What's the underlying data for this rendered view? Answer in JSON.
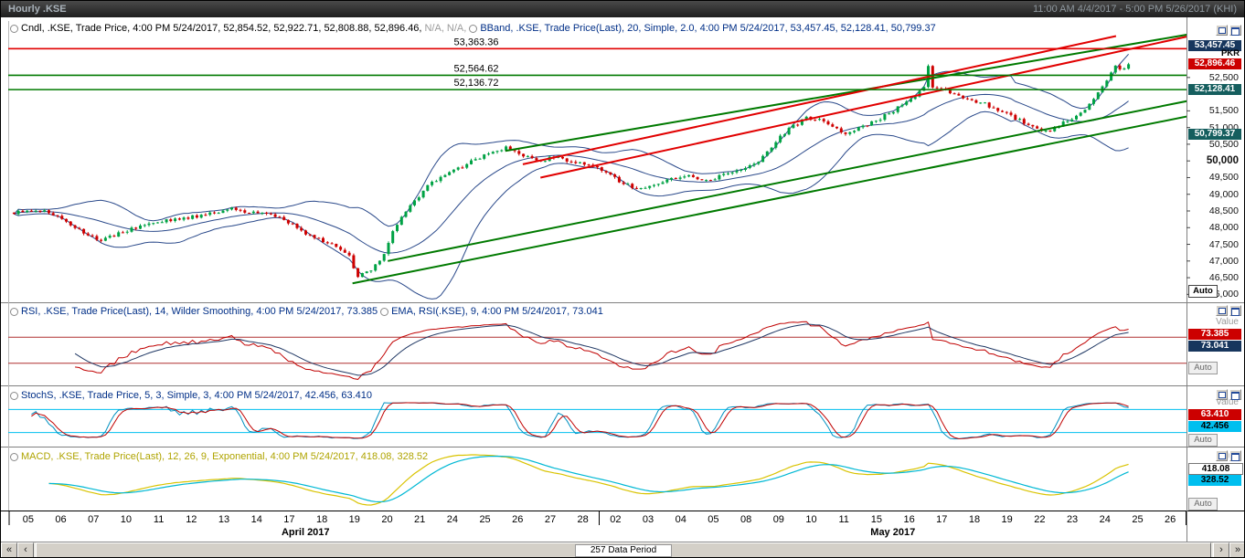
{
  "window": {
    "title": "Hourly .KSE",
    "time_range": "11:00 AM 4/4/2017 - 5:00 PM 5/26/2017 (KHI)"
  },
  "axis_labels": {
    "currency": "PKR",
    "auto": "Auto",
    "value": "Value"
  },
  "scrollbar": {
    "label": "257 Data Period",
    "buttons": [
      "«",
      "‹",
      "›",
      "»"
    ]
  },
  "panels": {
    "main": {
      "legend_cndl": "Cndl, .KSE, Trade Price, 4:00 PM 5/24/2017, 52,854.52, 52,922.71, 52,808.88, 52,896.46, ",
      "legend_cndl_na": "N/A, N/A,",
      "legend_bband": "BBand, .KSE, Trade Price(Last), 20, Simple, 2.0, 4:00 PM 5/24/2017, 53,457.45, 52,128.41, 50,799.37",
      "price_boxes": [
        {
          "label": "53,457.45",
          "value": 53457.45,
          "bg": "#17365d",
          "fg": "#ffffff"
        },
        {
          "label": "52,896.46",
          "value": 52896.46,
          "bg": "#cc0000",
          "fg": "#ffffff",
          "currency_above": true
        },
        {
          "label": "52,128.41",
          "value": 52128.41,
          "bg": "#155e5e",
          "fg": "#ffffff"
        },
        {
          "label": "50,799.37",
          "value": 50799.37,
          "bg": "#155e5e",
          "fg": "#ffffff"
        }
      ],
      "y_ticks": [
        {
          "label": "52,500",
          "value": 52500
        },
        {
          "label": "51,500",
          "value": 51500
        },
        {
          "label": "51,000",
          "value": 51000
        },
        {
          "label": "50,500",
          "value": 50500
        },
        {
          "label": "50,000",
          "value": 50000,
          "bold": true
        },
        {
          "label": "49,500",
          "value": 49500
        },
        {
          "label": "49,000",
          "value": 49000
        },
        {
          "label": "48,500",
          "value": 48500
        },
        {
          "label": "48,000",
          "value": 48000
        },
        {
          "label": "47,500",
          "value": 47500
        },
        {
          "label": "47,000",
          "value": 47000
        },
        {
          "label": "46,500",
          "value": 46500
        },
        {
          "label": "46,000",
          "value": 46000
        }
      ]
    },
    "rsi": {
      "legend_rsi": "RSI, .KSE, Trade Price(Last), 14, Wilder Smoothing, 4:00 PM 5/24/2017, 73.385",
      "legend_ema": "EMA, RSI(.KSE), 9, 4:00 PM 5/24/2017, 73.041",
      "boxes": [
        {
          "label": "73.385",
          "value": 73.385,
          "bg": "#cc0000",
          "fg": "#ffffff"
        },
        {
          "label": "73.041",
          "value": 73.041,
          "bg": "#17365d",
          "fg": "#ffffff"
        }
      ],
      "levels": [
        70,
        30
      ]
    },
    "stoch": {
      "legend": "StochS, .KSE, Trade Price, 5, 3, Simple, 3, 4:00 PM 5/24/2017, 42.456, 63.410",
      "boxes": [
        {
          "label": "63.410",
          "value": 63.41,
          "bg": "#cc0000",
          "fg": "#ffffff"
        },
        {
          "label": "42.456",
          "value": 42.456,
          "bg": "#00bfef",
          "fg": "#000000"
        }
      ],
      "levels": [
        80,
        20
      ]
    },
    "macd": {
      "legend": "MACD, .KSE, Trade Price(Last), 12, 26, 9, Exponential, 4:00 PM 5/24/2017, 418.08, 328.52",
      "boxes": [
        {
          "label": "418.08",
          "bg": "#ffffff",
          "fg": "#000000",
          "outline": true
        },
        {
          "label": "328.52",
          "bg": "#00bfef",
          "fg": "#000000"
        }
      ]
    }
  },
  "xaxis": {
    "months": [
      {
        "label": "April 2017",
        "days": [
          "05",
          "06",
          "07",
          "10",
          "11",
          "12",
          "13",
          "14",
          "17",
          "18",
          "19",
          "20",
          "21",
          "24",
          "25",
          "26",
          "27",
          "28"
        ]
      },
      {
        "label": "May 2017",
        "days": [
          "02",
          "03",
          "04",
          "05",
          "08",
          "09",
          "10",
          "11",
          "15",
          "16",
          "17",
          "18",
          "19",
          "22",
          "23",
          "24",
          "25",
          "26"
        ]
      }
    ]
  },
  "chart_data": {
    "type": "candlestick",
    "symbol": ".KSE",
    "interval": "Hourly",
    "bar_count": 257,
    "price_range": [
      45900,
      53700
    ],
    "last_ohlc": {
      "open": 52854.52,
      "high": 52922.71,
      "low": 52808.88,
      "close": 52896.46
    },
    "bband": {
      "period": 20,
      "type": "Simple",
      "mult": 2.0,
      "upper": 53457.45,
      "middle": 52128.41,
      "lower": 50799.37
    },
    "levels": [
      {
        "label": "53,363.36",
        "price": 53363.36,
        "color": "#e10000"
      },
      {
        "label": "52,564.62",
        "price": 52564.62,
        "color": "#007a00"
      },
      {
        "label": "52,136.72",
        "price": 52136.72,
        "color": "#007a00"
      }
    ],
    "trendlines": [
      {
        "x1": 0.29,
        "p1": 46330,
        "x2": 1.01,
        "p2": 51400,
        "color": "#007a00",
        "w": 2
      },
      {
        "x1": 0.32,
        "p1": 47000,
        "x2": 1.01,
        "p2": 51860,
        "color": "#007a00",
        "w": 2
      },
      {
        "x1": 0.42,
        "p1": 50300,
        "x2": 1.01,
        "p2": 53840,
        "color": "#007a00",
        "w": 2
      },
      {
        "x1": 0.435,
        "p1": 49900,
        "x2": 0.94,
        "p2": 53740,
        "color": "#e10000",
        "w": 2
      },
      {
        "x1": 0.45,
        "p1": 49500,
        "x2": 1.005,
        "p2": 53760,
        "color": "#e10000",
        "w": 2
      }
    ],
    "close_keypoints": [
      [
        0,
        48450
      ],
      [
        6,
        48520
      ],
      [
        10,
        48300
      ],
      [
        14,
        48030
      ],
      [
        19,
        47620
      ],
      [
        23,
        47780
      ],
      [
        28,
        48000
      ],
      [
        34,
        48180
      ],
      [
        40,
        48290
      ],
      [
        46,
        48460
      ],
      [
        50,
        48600
      ],
      [
        54,
        48430
      ],
      [
        58,
        48470
      ],
      [
        62,
        48250
      ],
      [
        66,
        47900
      ],
      [
        70,
        47640
      ],
      [
        74,
        47470
      ],
      [
        77,
        47150
      ],
      [
        79,
        46520
      ],
      [
        81,
        46650
      ],
      [
        83,
        46850
      ],
      [
        85,
        47250
      ],
      [
        87,
        47900
      ],
      [
        89,
        48350
      ],
      [
        92,
        48800
      ],
      [
        95,
        49250
      ],
      [
        98,
        49500
      ],
      [
        102,
        49750
      ],
      [
        106,
        50050
      ],
      [
        110,
        50300
      ],
      [
        113,
        50380
      ],
      [
        116,
        50180
      ],
      [
        120,
        50000
      ],
      [
        124,
        50100
      ],
      [
        128,
        49980
      ],
      [
        132,
        49850
      ],
      [
        136,
        49700
      ],
      [
        139,
        49380
      ],
      [
        143,
        49180
      ],
      [
        147,
        49300
      ],
      [
        151,
        49440
      ],
      [
        155,
        49560
      ],
      [
        159,
        49420
      ],
      [
        163,
        49560
      ],
      [
        167,
        49700
      ],
      [
        171,
        50000
      ],
      [
        175,
        50600
      ],
      [
        179,
        51050
      ],
      [
        182,
        51300
      ],
      [
        185,
        51220
      ],
      [
        188,
        51000
      ],
      [
        191,
        50820
      ],
      [
        194,
        50960
      ],
      [
        198,
        51200
      ],
      [
        202,
        51500
      ],
      [
        206,
        51820
      ],
      [
        209,
        52200
      ],
      [
        210,
        52880
      ],
      [
        211,
        52250
      ],
      [
        213,
        52120
      ],
      [
        216,
        52000
      ],
      [
        219,
        51850
      ],
      [
        222,
        51760
      ],
      [
        225,
        51580
      ],
      [
        228,
        51420
      ],
      [
        231,
        51220
      ],
      [
        234,
        51000
      ],
      [
        237,
        50870
      ],
      [
        240,
        51080
      ],
      [
        243,
        51250
      ],
      [
        246,
        51500
      ],
      [
        249,
        52000
      ],
      [
        251,
        52450
      ],
      [
        253,
        52800
      ],
      [
        254,
        52690
      ],
      [
        256,
        52896.46
      ]
    ],
    "indicators": {
      "rsi": {
        "period": 14,
        "smoothing": "Wilder Smoothing",
        "last": 73.385,
        "ema_period": 9,
        "ema_last": 73.041
      },
      "stoch": {
        "k": 5,
        "slow": 3,
        "type": "Simple",
        "d": 3,
        "last_k": 42.456,
        "last_d": 63.41
      },
      "macd": {
        "fast": 12,
        "slow": 26,
        "signal": 9,
        "type": "Exponential",
        "last": 418.08,
        "last_signal": 328.52
      }
    }
  }
}
